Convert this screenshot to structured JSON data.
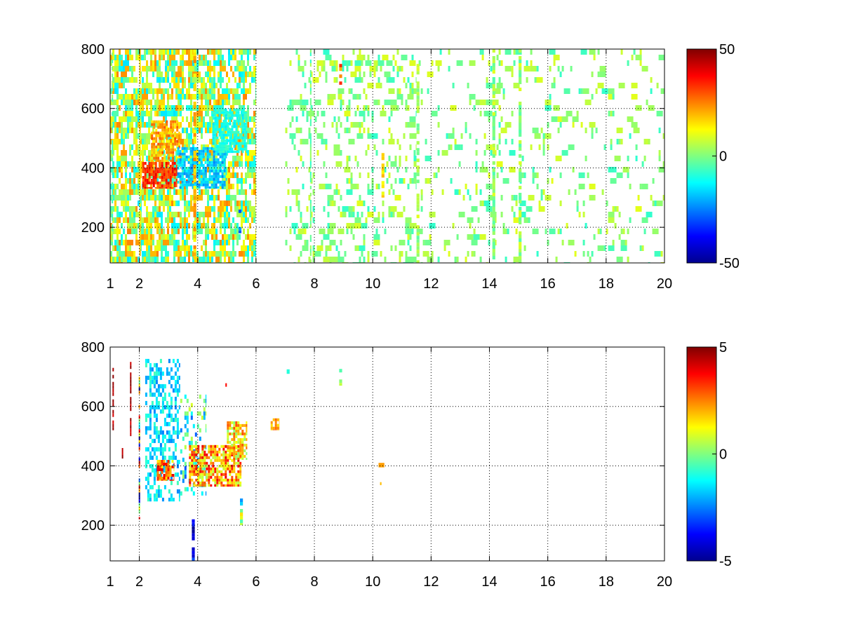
{
  "chart_data": [
    {
      "type": "heatmap",
      "title": "",
      "xlabel": "",
      "ylabel": "",
      "xlim": [
        1,
        20
      ],
      "ylim": [
        80,
        800
      ],
      "xticks": [
        1,
        2,
        4,
        6,
        8,
        10,
        12,
        14,
        16,
        18,
        20
      ],
      "xtick_labels": [
        "1",
        "2",
        "4",
        "6",
        "8",
        "10",
        "12",
        "14",
        "16",
        "18",
        "20"
      ],
      "yticks": [
        200,
        400,
        600,
        800
      ],
      "ytick_labels": [
        "200",
        "400",
        "600",
        "800"
      ],
      "grid": true,
      "colormap": "jet",
      "colorbar": {
        "range": [
          -50,
          50
        ],
        "ticks": [
          -50,
          0,
          50
        ],
        "tick_labels": [
          "-50",
          "0",
          "50"
        ]
      },
      "features": [
        {
          "kind": "dense",
          "x": [
            1.0,
            6.0
          ],
          "y": [
            80,
            800
          ],
          "value": [
            -15,
            25
          ],
          "density": 0.55
        },
        {
          "kind": "dense",
          "x": [
            7.0,
            11.5
          ],
          "y": [
            80,
            800
          ],
          "value": [
            -8,
            10
          ],
          "density": 0.18
        },
        {
          "kind": "dense",
          "x": [
            11.5,
            20.0
          ],
          "y": [
            80,
            800
          ],
          "value": [
            -8,
            10
          ],
          "density": 0.09
        },
        {
          "kind": "blob",
          "x": [
            2.1,
            3.3
          ],
          "y": [
            330,
            420
          ],
          "value": [
            25,
            40
          ]
        },
        {
          "kind": "blob",
          "x": [
            2.4,
            3.4
          ],
          "y": [
            420,
            560
          ],
          "value": [
            12,
            30
          ]
        },
        {
          "kind": "blob",
          "x": [
            3.6,
            3.9
          ],
          "y": [
            345,
            380
          ],
          "value": [
            30,
            40
          ]
        },
        {
          "kind": "blob",
          "x": [
            3.3,
            5.0
          ],
          "y": [
            330,
            470
          ],
          "value": [
            -25,
            -10
          ]
        },
        {
          "kind": "blob",
          "x": [
            4.5,
            5.7
          ],
          "y": [
            450,
            600
          ],
          "value": [
            -15,
            -5
          ]
        },
        {
          "kind": "streak",
          "x": [
            1.05,
            1.1
          ],
          "y": [
            80,
            800
          ],
          "value": [
            -8,
            5
          ]
        },
        {
          "kind": "streak",
          "x": [
            2.0,
            2.05
          ],
          "y": [
            80,
            800
          ],
          "value": [
            10,
            20
          ]
        },
        {
          "kind": "streak",
          "x": [
            3.85,
            3.95
          ],
          "y": [
            80,
            800
          ],
          "value": [
            10,
            25
          ]
        },
        {
          "kind": "streak",
          "x": [
            7.85,
            7.9
          ],
          "y": [
            80,
            800
          ],
          "value": [
            -8,
            5
          ]
        },
        {
          "kind": "streak",
          "x": [
            8.85,
            8.95
          ],
          "y": [
            680,
            750
          ],
          "value": [
            20,
            35
          ]
        },
        {
          "kind": "streak",
          "x": [
            10.3,
            10.4
          ],
          "y": [
            300,
            450
          ],
          "value": [
            10,
            20
          ]
        },
        {
          "kind": "streak",
          "x": [
            11.5,
            11.6
          ],
          "y": [
            80,
            750
          ],
          "value": [
            -5,
            10
          ]
        },
        {
          "kind": "streak",
          "x": [
            14.1,
            14.2
          ],
          "y": [
            80,
            800
          ],
          "value": [
            -5,
            10
          ]
        },
        {
          "kind": "streak",
          "x": [
            15.0,
            15.1
          ],
          "y": [
            80,
            800
          ],
          "value": [
            -5,
            10
          ]
        },
        {
          "kind": "streak",
          "x": [
            5.4,
            5.5
          ],
          "y": [
            180,
            260
          ],
          "value": [
            -30,
            -20
          ]
        }
      ]
    },
    {
      "type": "heatmap",
      "title": "",
      "xlabel": "",
      "ylabel": "",
      "xlim": [
        1,
        20
      ],
      "ylim": [
        80,
        800
      ],
      "xticks": [
        1,
        2,
        4,
        6,
        8,
        10,
        12,
        14,
        16,
        18,
        20
      ],
      "xtick_labels": [
        "1",
        "2",
        "4",
        "6",
        "8",
        "10",
        "12",
        "14",
        "16",
        "18",
        "20"
      ],
      "yticks": [
        200,
        400,
        600,
        800
      ],
      "ytick_labels": [
        "200",
        "400",
        "600",
        "800"
      ],
      "grid": true,
      "colormap": "jet",
      "colorbar": {
        "range": [
          -5,
          5
        ],
        "ticks": [
          -5,
          0,
          5
        ],
        "tick_labels": [
          "-5",
          "0",
          "5"
        ]
      },
      "features": [
        {
          "kind": "dense",
          "x": [
            2.2,
            3.4
          ],
          "y": [
            280,
            760
          ],
          "value": [
            -2.5,
            -0.5
          ],
          "density": 0.45
        },
        {
          "kind": "dense",
          "x": [
            3.4,
            4.3
          ],
          "y": [
            300,
            640
          ],
          "value": [
            -3,
            1
          ],
          "density": 0.3
        },
        {
          "kind": "blob",
          "x": [
            2.6,
            3.2
          ],
          "y": [
            350,
            420
          ],
          "value": [
            1,
            4
          ]
        },
        {
          "kind": "blob",
          "x": [
            3.7,
            5.5
          ],
          "y": [
            330,
            470
          ],
          "value": [
            0.5,
            4
          ]
        },
        {
          "kind": "blob",
          "x": [
            5.0,
            5.7
          ],
          "y": [
            420,
            550
          ],
          "value": [
            0,
            3
          ]
        },
        {
          "kind": "blob",
          "x": [
            6.5,
            6.8
          ],
          "y": [
            520,
            560
          ],
          "value": [
            1.5,
            3
          ]
        },
        {
          "kind": "streak",
          "x": [
            1.08,
            1.12
          ],
          "y": [
            520,
            730
          ],
          "value": [
            4,
            5
          ]
        },
        {
          "kind": "streak",
          "x": [
            1.68,
            1.72
          ],
          "y": [
            500,
            750
          ],
          "value": [
            4,
            5
          ]
        },
        {
          "kind": "streak",
          "x": [
            1.4,
            1.44
          ],
          "y": [
            420,
            460
          ],
          "value": [
            4,
            5
          ]
        },
        {
          "kind": "streak",
          "x": [
            1.98,
            2.02
          ],
          "y": [
            220,
            700
          ],
          "value": [
            -5,
            5
          ]
        },
        {
          "kind": "streak",
          "x": [
            3.8,
            3.9
          ],
          "y": [
            80,
            220
          ],
          "value": [
            -5,
            -3
          ]
        },
        {
          "kind": "streak",
          "x": [
            5.45,
            5.55
          ],
          "y": [
            200,
            290
          ],
          "value": [
            -3,
            5
          ]
        },
        {
          "kind": "streak",
          "x": [
            8.85,
            8.95
          ],
          "y": [
            670,
            750
          ],
          "value": [
            -1,
            2
          ]
        },
        {
          "kind": "streak",
          "x": [
            4.95,
            5.0
          ],
          "y": [
            660,
            690
          ],
          "value": [
            -5,
            5
          ]
        },
        {
          "kind": "point",
          "x": [
            10.2,
            10.4
          ],
          "y": [
            395,
            410
          ],
          "value": [
            2,
            3
          ]
        },
        {
          "kind": "point",
          "x": [
            10.25,
            10.3
          ],
          "y": [
            335,
            345
          ],
          "value": [
            1.5,
            2
          ]
        },
        {
          "kind": "point",
          "x": [
            7.05,
            7.15
          ],
          "y": [
            710,
            725
          ],
          "value": [
            -1,
            1
          ]
        }
      ]
    }
  ]
}
